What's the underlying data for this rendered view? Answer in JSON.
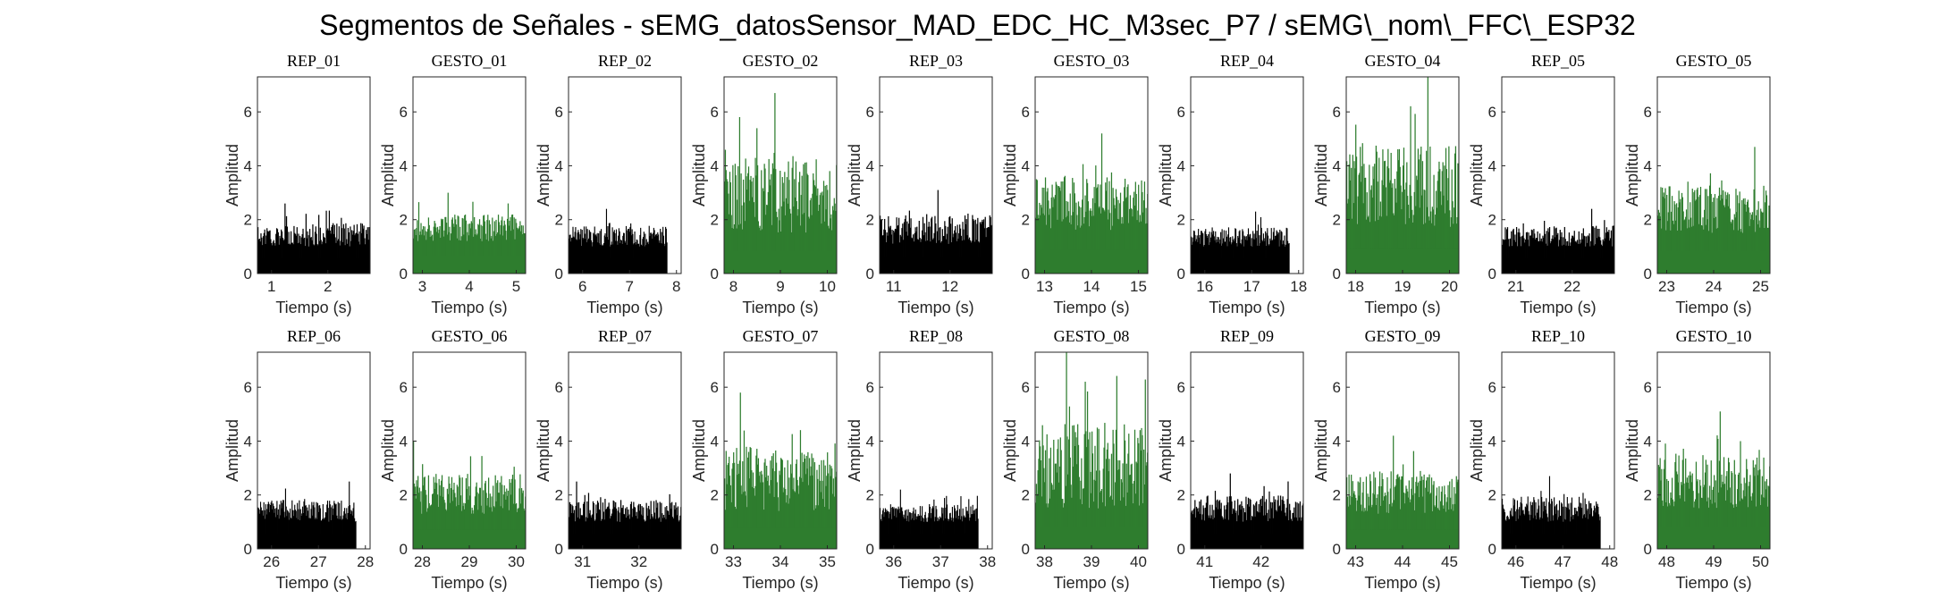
{
  "title": "Segmentos de Señales - sEMG_datosSensor_MAD_EDC_HC_M3sec_P7 / sEMG\\_nom\\_FFC\\_ESP32",
  "colors": {
    "rep": "#000000",
    "gesto": "#2e7d2e",
    "axis": "#262626"
  },
  "chart_data": [
    {
      "type": "bar",
      "title": "REP_01",
      "kind": "rep",
      "xlabel": "Tiempo (s)",
      "ylabel": "Amplitud",
      "xlim": [
        0.75,
        2.75
      ],
      "ylim": [
        0,
        7.3
      ],
      "xticks": [
        1,
        2
      ],
      "yticks": [
        0,
        2,
        4,
        6
      ],
      "x_start": 0.75,
      "x_end": 2.75,
      "baseline": 1.0,
      "peak": 2.6
    },
    {
      "type": "bar",
      "title": "GESTO_01",
      "kind": "gesto",
      "xlabel": "Tiempo (s)",
      "ylabel": "Amplitud",
      "xlim": [
        2.8,
        5.2
      ],
      "ylim": [
        0,
        7.3
      ],
      "xticks": [
        3,
        4,
        5
      ],
      "yticks": [
        0,
        2,
        4,
        6
      ],
      "x_start": 2.8,
      "x_end": 5.2,
      "baseline": 1.2,
      "peak": 3.0
    },
    {
      "type": "bar",
      "title": "REP_02",
      "kind": "rep",
      "xlabel": "Tiempo (s)",
      "ylabel": "Amplitud",
      "xlim": [
        5.7,
        8.1
      ],
      "ylim": [
        0,
        7.3
      ],
      "xticks": [
        6,
        7,
        8
      ],
      "yticks": [
        0,
        2,
        4,
        6
      ],
      "x_start": 5.7,
      "x_end": 7.8,
      "baseline": 1.0,
      "peak": 2.4
    },
    {
      "type": "bar",
      "title": "GESTO_02",
      "kind": "gesto",
      "xlabel": "Tiempo (s)",
      "ylabel": "Amplitud",
      "xlim": [
        7.8,
        10.2
      ],
      "ylim": [
        0,
        7.3
      ],
      "xticks": [
        8,
        9,
        10
      ],
      "yticks": [
        0,
        2,
        4,
        6
      ],
      "x_start": 7.8,
      "x_end": 10.2,
      "baseline": 1.5,
      "peak": 6.7
    },
    {
      "type": "bar",
      "title": "REP_03",
      "kind": "rep",
      "xlabel": "Tiempo (s)",
      "ylabel": "Amplitud",
      "xlim": [
        10.75,
        12.75
      ],
      "ylim": [
        0,
        7.3
      ],
      "xticks": [
        11,
        12
      ],
      "yticks": [
        0,
        2,
        4,
        6
      ],
      "x_start": 10.75,
      "x_end": 12.75,
      "baseline": 1.1,
      "peak": 3.1
    },
    {
      "type": "bar",
      "title": "GESTO_03",
      "kind": "gesto",
      "xlabel": "Tiempo (s)",
      "ylabel": "Amplitud",
      "xlim": [
        12.8,
        15.2
      ],
      "ylim": [
        0,
        7.3
      ],
      "xticks": [
        13,
        14,
        15
      ],
      "yticks": [
        0,
        2,
        4,
        6
      ],
      "x_start": 12.8,
      "x_end": 15.2,
      "baseline": 1.6,
      "peak": 5.2
    },
    {
      "type": "bar",
      "title": "REP_04",
      "kind": "rep",
      "xlabel": "Tiempo (s)",
      "ylabel": "Amplitud",
      "xlim": [
        15.7,
        18.1
      ],
      "ylim": [
        0,
        7.3
      ],
      "xticks": [
        16,
        17,
        18
      ],
      "yticks": [
        0,
        2,
        4,
        6
      ],
      "x_start": 15.7,
      "x_end": 17.8,
      "baseline": 1.0,
      "peak": 2.3
    },
    {
      "type": "bar",
      "title": "GESTO_04",
      "kind": "gesto",
      "xlabel": "Tiempo (s)",
      "ylabel": "Amplitud",
      "xlim": [
        17.8,
        20.2
      ],
      "ylim": [
        0,
        7.3
      ],
      "xticks": [
        18,
        19,
        20
      ],
      "yticks": [
        0,
        2,
        4,
        6
      ],
      "x_start": 17.8,
      "x_end": 20.2,
      "baseline": 1.7,
      "peak": 7.3
    },
    {
      "type": "bar",
      "title": "REP_05",
      "kind": "rep",
      "xlabel": "Tiempo (s)",
      "ylabel": "Amplitud",
      "xlim": [
        20.75,
        22.75
      ],
      "ylim": [
        0,
        7.3
      ],
      "xticks": [
        21,
        22
      ],
      "yticks": [
        0,
        2,
        4,
        6
      ],
      "x_start": 20.75,
      "x_end": 22.75,
      "baseline": 1.0,
      "peak": 2.4
    },
    {
      "type": "bar",
      "title": "GESTO_05",
      "kind": "gesto",
      "xlabel": "Tiempo (s)",
      "ylabel": "Amplitud",
      "xlim": [
        22.8,
        25.2
      ],
      "ylim": [
        0,
        7.3
      ],
      "xticks": [
        23,
        24,
        25
      ],
      "yticks": [
        0,
        2,
        4,
        6
      ],
      "x_start": 22.8,
      "x_end": 25.2,
      "baseline": 1.5,
      "peak": 4.7
    },
    {
      "type": "bar",
      "title": "REP_06",
      "kind": "rep",
      "xlabel": "Tiempo (s)",
      "ylabel": "Amplitud",
      "xlim": [
        25.7,
        28.1
      ],
      "ylim": [
        0,
        7.3
      ],
      "xticks": [
        26,
        27,
        28
      ],
      "yticks": [
        0,
        2,
        4,
        6
      ],
      "x_start": 25.7,
      "x_end": 27.8,
      "baseline": 1.0,
      "peak": 2.5
    },
    {
      "type": "bar",
      "title": "GESTO_06",
      "kind": "gesto",
      "xlabel": "Tiempo (s)",
      "ylabel": "Amplitud",
      "xlim": [
        27.8,
        30.2
      ],
      "ylim": [
        0,
        7.3
      ],
      "xticks": [
        28,
        29,
        30
      ],
      "yticks": [
        0,
        2,
        4,
        6
      ],
      "x_start": 27.8,
      "x_end": 30.2,
      "baseline": 1.3,
      "peak": 4.0
    },
    {
      "type": "bar",
      "title": "REP_07",
      "kind": "rep",
      "xlabel": "Tiempo (s)",
      "ylabel": "Amplitud",
      "xlim": [
        30.75,
        32.75
      ],
      "ylim": [
        0,
        7.3
      ],
      "xticks": [
        31,
        32
      ],
      "yticks": [
        0,
        2,
        4,
        6
      ],
      "x_start": 30.75,
      "x_end": 32.75,
      "baseline": 1.0,
      "peak": 2.5
    },
    {
      "type": "bar",
      "title": "GESTO_07",
      "kind": "gesto",
      "xlabel": "Tiempo (s)",
      "ylabel": "Amplitud",
      "xlim": [
        32.8,
        35.2
      ],
      "ylim": [
        0,
        7.3
      ],
      "xticks": [
        33,
        34,
        35
      ],
      "yticks": [
        0,
        2,
        4,
        6
      ],
      "x_start": 32.8,
      "x_end": 35.2,
      "baseline": 1.4,
      "peak": 5.8
    },
    {
      "type": "bar",
      "title": "REP_08",
      "kind": "rep",
      "xlabel": "Tiempo (s)",
      "ylabel": "Amplitud",
      "xlim": [
        35.7,
        38.1
      ],
      "ylim": [
        0,
        7.3
      ],
      "xticks": [
        36,
        37,
        38
      ],
      "yticks": [
        0,
        2,
        4,
        6
      ],
      "x_start": 35.7,
      "x_end": 37.8,
      "baseline": 1.0,
      "peak": 2.2
    },
    {
      "type": "bar",
      "title": "GESTO_08",
      "kind": "gesto",
      "xlabel": "Tiempo (s)",
      "ylabel": "Amplitud",
      "xlim": [
        37.8,
        40.2
      ],
      "ylim": [
        0,
        7.3
      ],
      "xticks": [
        38,
        39,
        40
      ],
      "yticks": [
        0,
        2,
        4,
        6
      ],
      "x_start": 37.8,
      "x_end": 40.2,
      "baseline": 1.5,
      "peak": 7.3
    },
    {
      "type": "bar",
      "title": "REP_09",
      "kind": "rep",
      "xlabel": "Tiempo (s)",
      "ylabel": "Amplitud",
      "xlim": [
        40.75,
        42.75
      ],
      "ylim": [
        0,
        7.3
      ],
      "xticks": [
        41,
        42
      ],
      "yticks": [
        0,
        2,
        4,
        6
      ],
      "x_start": 40.75,
      "x_end": 42.75,
      "baseline": 1.0,
      "peak": 2.8
    },
    {
      "type": "bar",
      "title": "GESTO_09",
      "kind": "gesto",
      "xlabel": "Tiempo (s)",
      "ylabel": "Amplitud",
      "xlim": [
        42.8,
        45.2
      ],
      "ylim": [
        0,
        7.3
      ],
      "xticks": [
        43,
        44,
        45
      ],
      "yticks": [
        0,
        2,
        4,
        6
      ],
      "x_start": 42.8,
      "x_end": 45.2,
      "baseline": 1.3,
      "peak": 4.2
    },
    {
      "type": "bar",
      "title": "REP_10",
      "kind": "rep",
      "xlabel": "Tiempo (s)",
      "ylabel": "Amplitud",
      "xlim": [
        45.7,
        48.1
      ],
      "ylim": [
        0,
        7.3
      ],
      "xticks": [
        46,
        47,
        48
      ],
      "yticks": [
        0,
        2,
        4,
        6
      ],
      "x_start": 45.7,
      "x_end": 47.8,
      "baseline": 1.0,
      "peak": 2.7
    },
    {
      "type": "bar",
      "title": "GESTO_10",
      "kind": "gesto",
      "xlabel": "Tiempo (s)",
      "ylabel": "Amplitud",
      "xlim": [
        47.8,
        50.2
      ],
      "ylim": [
        0,
        7.3
      ],
      "xticks": [
        48,
        49,
        50
      ],
      "yticks": [
        0,
        2,
        4,
        6
      ],
      "x_start": 47.8,
      "x_end": 50.2,
      "baseline": 1.5,
      "peak": 5.1
    }
  ]
}
